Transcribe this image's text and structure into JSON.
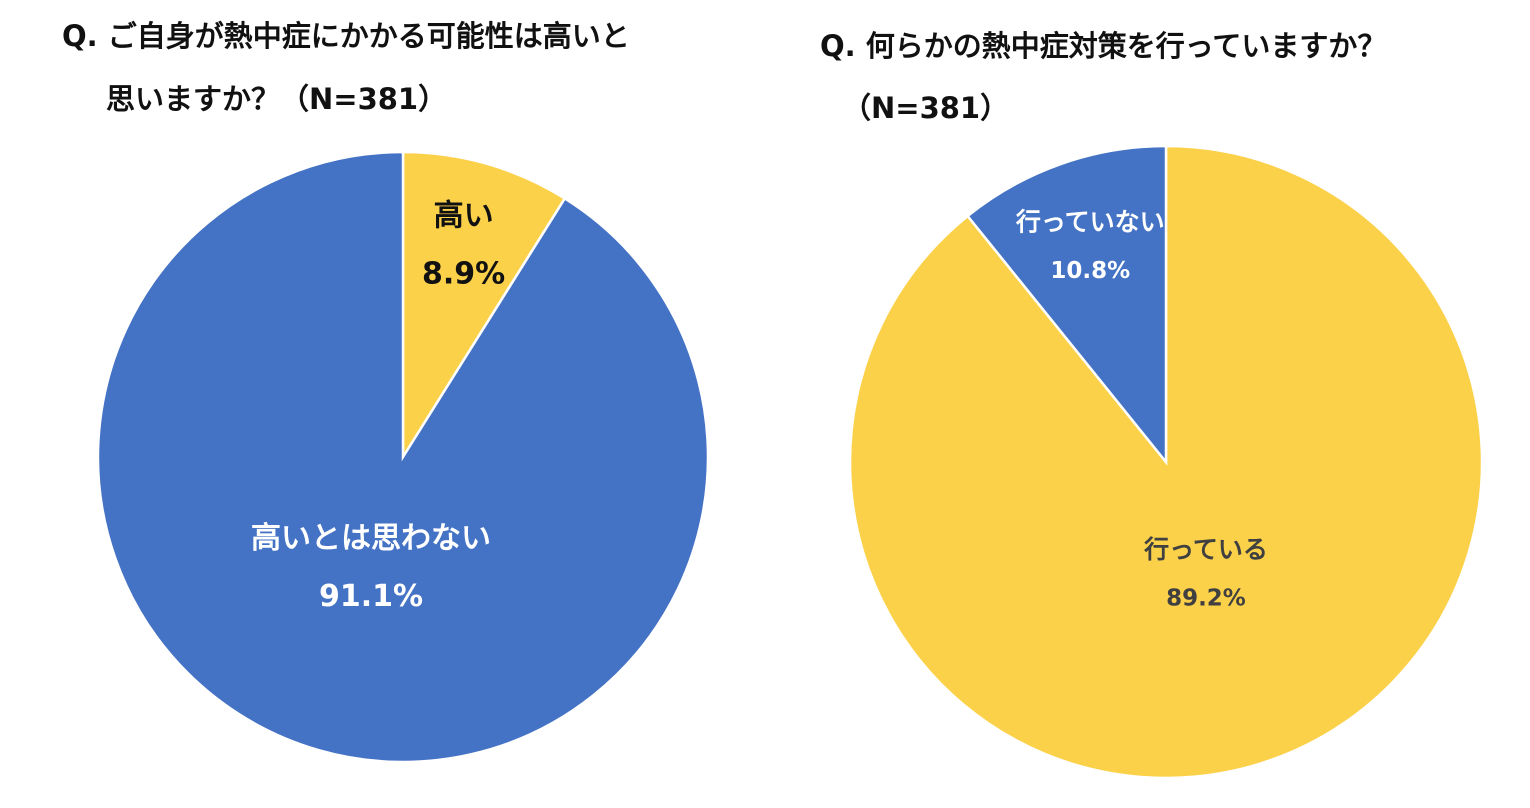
{
  "chart_data": [
    {
      "type": "pie",
      "title": [
        "Q. ご自身が熱中症にかかる可能性は高いと",
        "思いますか？（N=381）"
      ],
      "categories": [
        "高い",
        "高いとは思わない"
      ],
      "values": [
        8.9,
        91.1
      ],
      "value_labels": [
        "8.9%",
        "91.1%"
      ],
      "colors": [
        "#fcd14a",
        "#4472c4"
      ]
    },
    {
      "type": "pie",
      "title": [
        "Q. 何らかの熱中症対策を行っていますか？",
        "（N=381）"
      ],
      "categories": [
        "行っている",
        "行っていない"
      ],
      "values": [
        89.2,
        10.8
      ],
      "value_labels": [
        "89.2%",
        "10.8%"
      ],
      "colors": [
        "#fcd14a",
        "#4472c4"
      ]
    }
  ]
}
